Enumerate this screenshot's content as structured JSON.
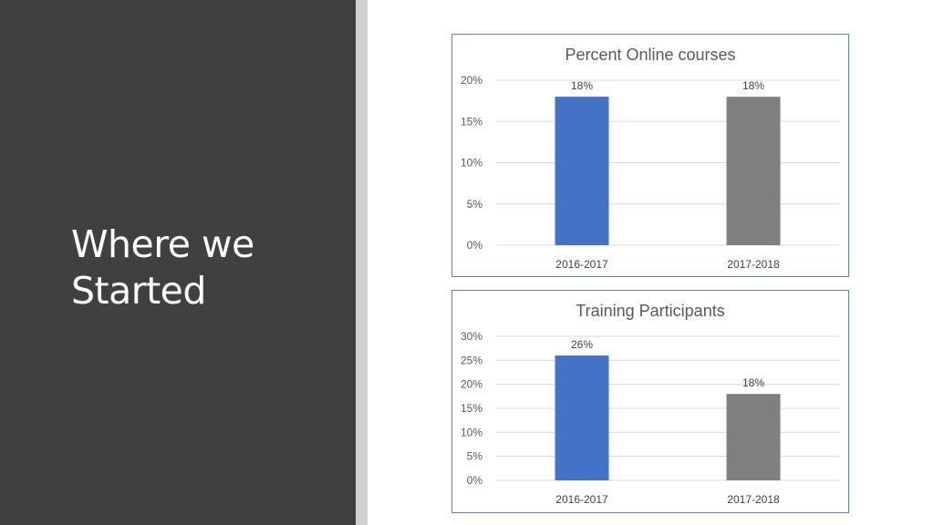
{
  "slide": {
    "title_line1": "Where we",
    "title_line2": "Started"
  },
  "colors": {
    "panel": "#404040",
    "accent_blue": "#4472c4",
    "accent_gray": "#7f7f7f"
  },
  "chart_data": [
    {
      "type": "bar",
      "title": "Percent Online courses",
      "categories": [
        "2016-2017",
        "2017-2018"
      ],
      "values": [
        18,
        18
      ],
      "value_labels": [
        "18%",
        "18%"
      ],
      "bar_colors": [
        "#4472c4",
        "#7f7f7f"
      ],
      "ylim": [
        0,
        20
      ],
      "yticks": [
        0,
        5,
        10,
        15,
        20
      ],
      "ytick_labels": [
        "0%",
        "5%",
        "10%",
        "15%",
        "20%"
      ],
      "xlabel": "",
      "ylabel": "",
      "grid": true,
      "legend": "none"
    },
    {
      "type": "bar",
      "title": "Training Participants",
      "categories": [
        "2016-2017",
        "2017-2018"
      ],
      "values": [
        26,
        18
      ],
      "value_labels": [
        "26%",
        "18%"
      ],
      "bar_colors": [
        "#4472c4",
        "#7f7f7f"
      ],
      "ylim": [
        0,
        30
      ],
      "yticks": [
        0,
        5,
        10,
        15,
        20,
        25,
        30
      ],
      "ytick_labels": [
        "0%",
        "5%",
        "10%",
        "15%",
        "20%",
        "25%",
        "30%"
      ],
      "xlabel": "",
      "ylabel": "",
      "grid": true,
      "legend": "none"
    }
  ]
}
